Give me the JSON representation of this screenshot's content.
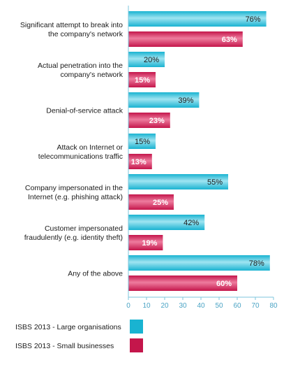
{
  "colors": {
    "large": "#19b3d1",
    "large_hi": "#9fe4f1",
    "small": "#c4164b",
    "small_hi": "#ee7c9e",
    "axis": "#7cc5dc",
    "tick_text": "#4aa3c4"
  },
  "chart_data": {
    "type": "bar",
    "orientation": "horizontal",
    "title": "",
    "xlabel": "",
    "ylabel": "",
    "xlim": [
      0,
      80
    ],
    "ticks": [
      0,
      10,
      20,
      30,
      40,
      50,
      60,
      70,
      80
    ],
    "grid": false,
    "legend_position": "bottom-left",
    "categories": [
      [
        "Significant attempt to break into",
        "the company's network"
      ],
      [
        "Actual penetration into the",
        "company's network"
      ],
      [
        "Denial-of-service attack"
      ],
      [
        "Attack on Internet or",
        "telecommunications traffic"
      ],
      [
        "Company impersonated in the",
        "Internet (e.g. phishing attack)"
      ],
      [
        "Customer impersonated",
        "fraudulently (e.g. identity theft)"
      ],
      [
        "Any of the above"
      ]
    ],
    "series": [
      {
        "name": "ISBS 2013 - Large organisations",
        "color": "#19b3d1",
        "values": [
          76,
          20,
          39,
          15,
          55,
          42,
          78
        ],
        "labels": [
          "76%",
          "20%",
          "39%",
          "15%",
          "55%",
          "42%",
          "78%"
        ]
      },
      {
        "name": "ISBS 2013 - Small businesses",
        "color": "#c4164b",
        "values": [
          63,
          15,
          23,
          13,
          25,
          19,
          60
        ],
        "labels": [
          "63%",
          "15%",
          "23%",
          "13%",
          "25%",
          "19%",
          "60%"
        ]
      }
    ]
  }
}
